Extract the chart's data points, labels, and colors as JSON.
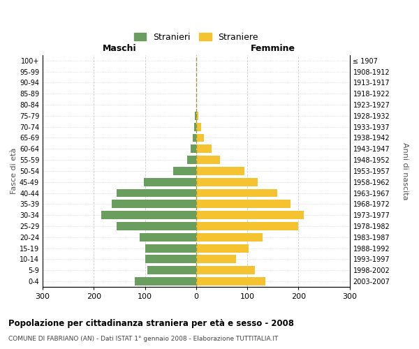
{
  "age_groups": [
    "0-4",
    "5-9",
    "10-14",
    "15-19",
    "20-24",
    "25-29",
    "30-34",
    "35-39",
    "40-44",
    "45-49",
    "50-54",
    "55-59",
    "60-64",
    "65-69",
    "70-74",
    "75-79",
    "80-84",
    "85-89",
    "90-94",
    "95-99",
    "100+"
  ],
  "birth_years": [
    "2003-2007",
    "1998-2002",
    "1993-1997",
    "1988-1992",
    "1983-1987",
    "1978-1982",
    "1973-1977",
    "1968-1972",
    "1963-1967",
    "1958-1962",
    "1953-1957",
    "1948-1952",
    "1943-1947",
    "1938-1942",
    "1933-1937",
    "1928-1932",
    "1923-1927",
    "1918-1922",
    "1913-1917",
    "1908-1912",
    "≤ 1907"
  ],
  "males": [
    120,
    95,
    100,
    100,
    110,
    155,
    185,
    165,
    155,
    102,
    45,
    18,
    11,
    7,
    4,
    2,
    0,
    0,
    0,
    0,
    0
  ],
  "females": [
    135,
    115,
    78,
    103,
    130,
    200,
    210,
    185,
    158,
    120,
    95,
    47,
    30,
    15,
    10,
    5,
    0,
    0,
    0,
    0,
    0
  ],
  "male_color": "#6a9e5e",
  "female_color": "#f5c230",
  "background_color": "#ffffff",
  "grid_color": "#cccccc",
  "title": "Popolazione per cittadinanza straniera per età e sesso - 2008",
  "subtitle": "COMUNE DI FABRIANO (AN) - Dati ISTAT 1° gennaio 2008 - Elaborazione TUTTITALIA.IT",
  "legend_male": "Stranieri",
  "legend_female": "Straniere",
  "xlabel_left": "Maschi",
  "xlabel_right": "Femmine",
  "ylabel_left": "Fasce di età",
  "ylabel_right": "Anni di nascita",
  "xlim": 300,
  "xticks": [
    -300,
    -200,
    -100,
    0,
    100,
    200,
    300
  ],
  "xtick_labels": [
    "300",
    "200",
    "100",
    "0",
    "100",
    "200",
    "300"
  ]
}
